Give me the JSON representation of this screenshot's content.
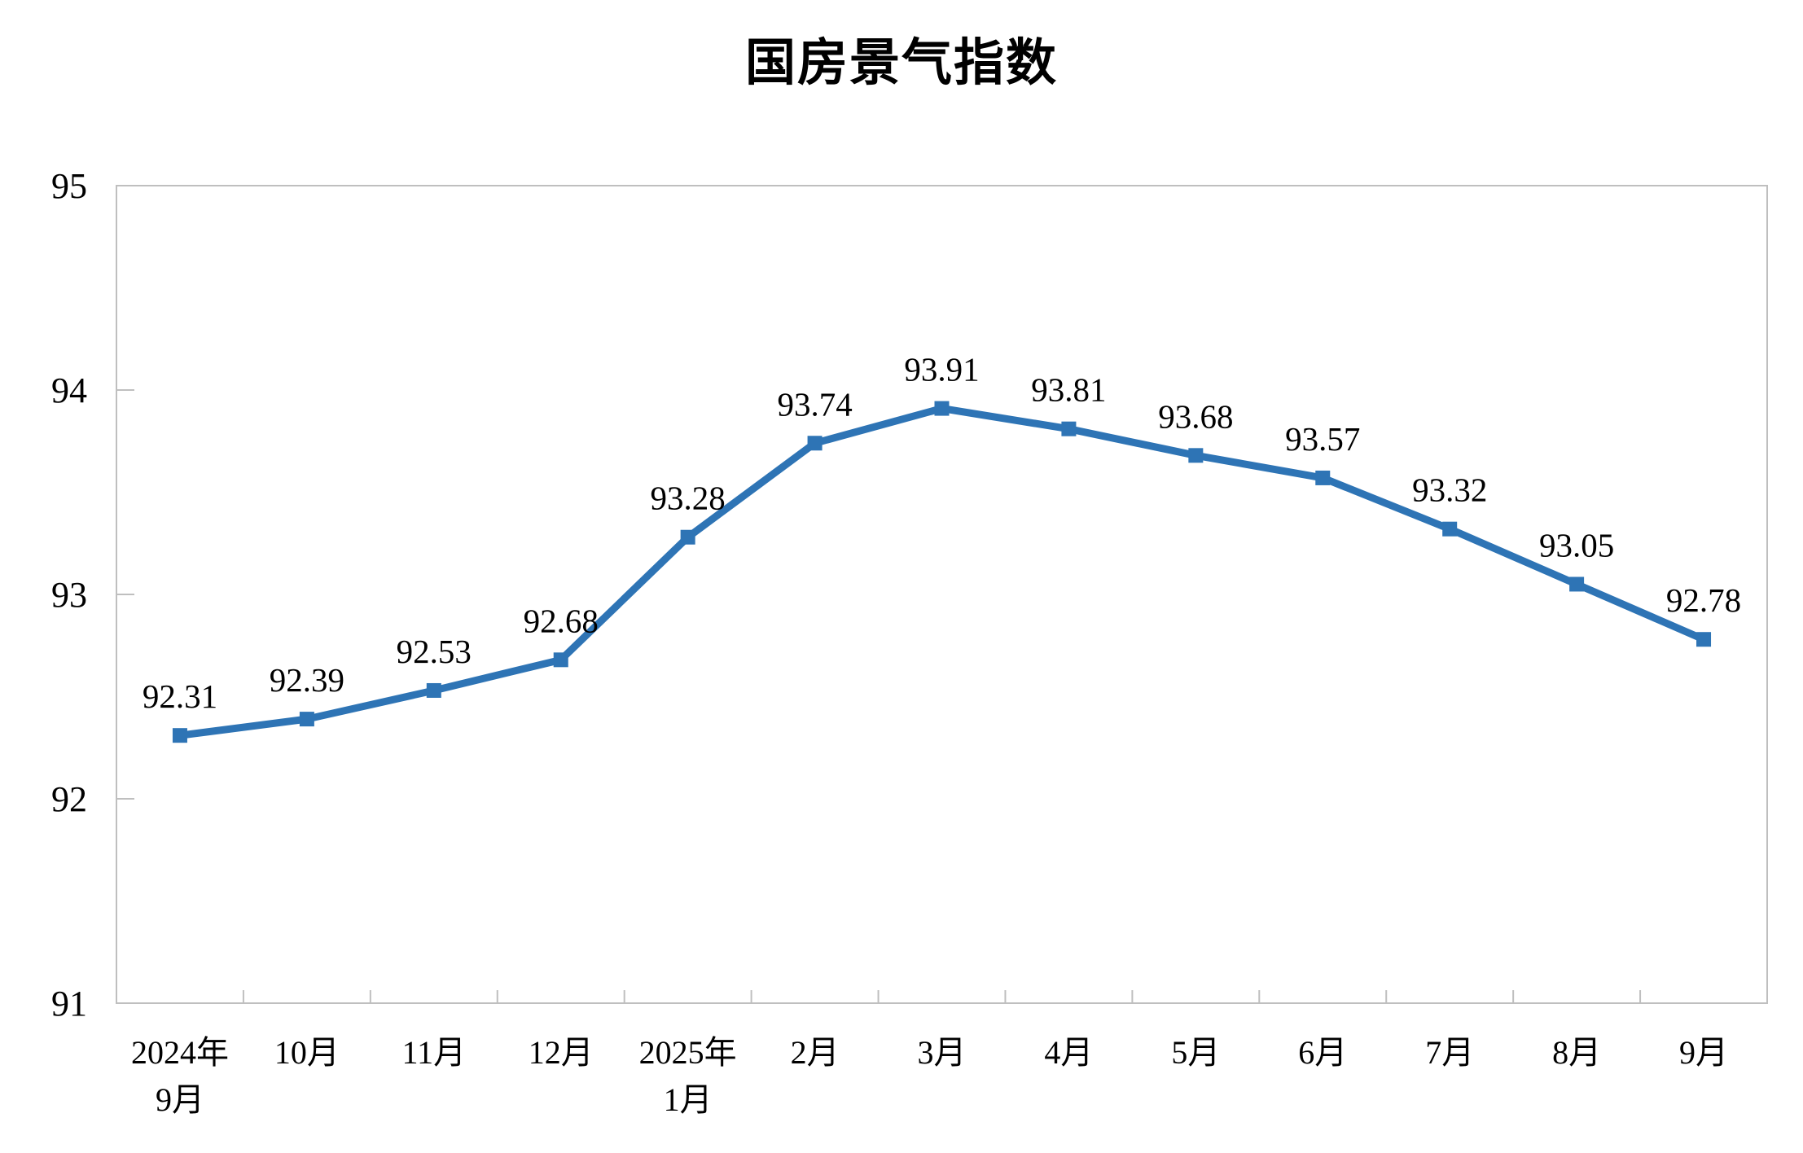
{
  "chart_data": {
    "type": "line",
    "title": "国房景气指数",
    "categories": [
      [
        "2024年",
        "9月"
      ],
      [
        "10月"
      ],
      [
        "11月"
      ],
      [
        "12月"
      ],
      [
        "2025年",
        "1月"
      ],
      [
        "2月"
      ],
      [
        "3月"
      ],
      [
        "4月"
      ],
      [
        "5月"
      ],
      [
        "6月"
      ],
      [
        "7月"
      ],
      [
        "8月"
      ],
      [
        "9月"
      ]
    ],
    "values": [
      92.31,
      92.39,
      92.53,
      92.68,
      93.28,
      93.74,
      93.91,
      93.81,
      93.68,
      93.57,
      93.32,
      93.05,
      92.78
    ],
    "data_labels": [
      "92.31",
      "92.39",
      "92.53",
      "92.68",
      "93.28",
      "93.74",
      "93.91",
      "93.81",
      "93.68",
      "93.57",
      "93.32",
      "93.05",
      "92.78"
    ],
    "xlabel": "",
    "ylabel": "",
    "ylim": [
      91,
      95
    ],
    "yticks": [
      91,
      92,
      93,
      94,
      95
    ],
    "ytick_labels": [
      "91",
      "92",
      "93",
      "94",
      "95"
    ],
    "grid": false,
    "legend": "none",
    "marker": "square",
    "line_color": "#2E74B5",
    "marker_color": "#2E74B5",
    "label_color": "#000000",
    "tick_label_color": "#000000",
    "axis_color": "#BFBFBF"
  }
}
